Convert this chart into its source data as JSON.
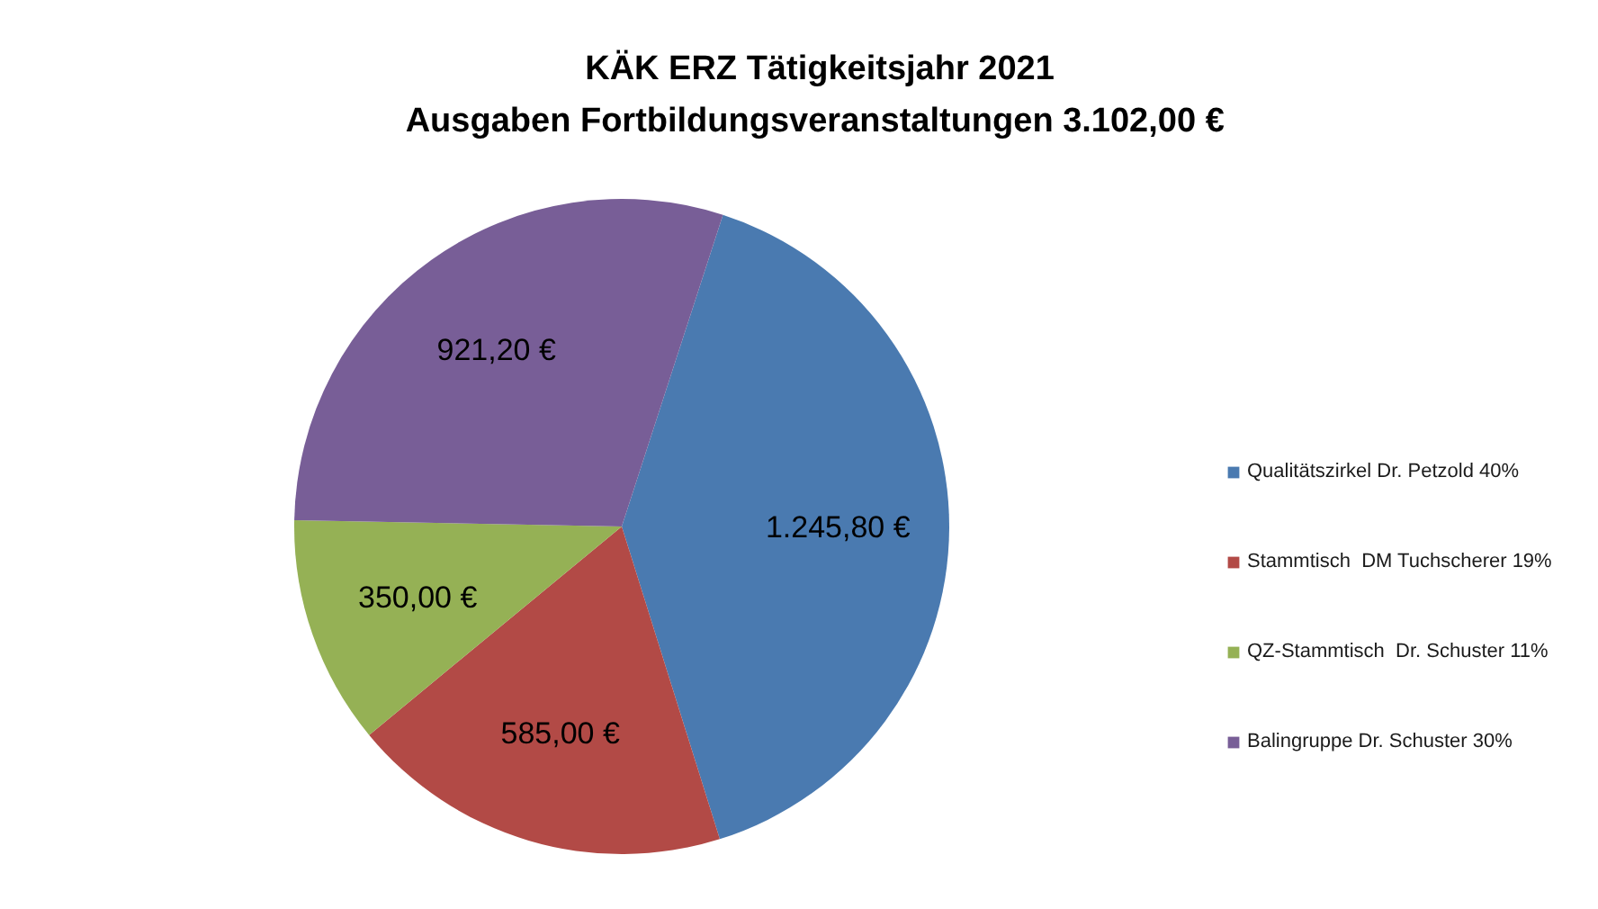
{
  "chart_data": {
    "type": "pie",
    "title": "KÄK ERZ Tätigkeitsjahr 2021",
    "subtitle": "Ausgaben Fortbildungsveranstaltungen  3.102,00 €",
    "categories": [
      "Qualitätszirkel Dr. Petzold 40%",
      "Stammtisch  DM Tuchscherer 19%",
      "QZ-Stammtisch  Dr. Schuster 11%",
      "Balingruppe Dr. Schuster 30%"
    ],
    "values": [
      1245.8,
      585,
      350,
      921.2
    ],
    "colors": [
      "#4a7ab0",
      "#b24a46",
      "#95b155",
      "#785e97"
    ],
    "value_labels": [
      "1.245,80 €",
      "585,00 €",
      "350,00 €",
      "921,20 €"
    ],
    "legend": "right"
  }
}
